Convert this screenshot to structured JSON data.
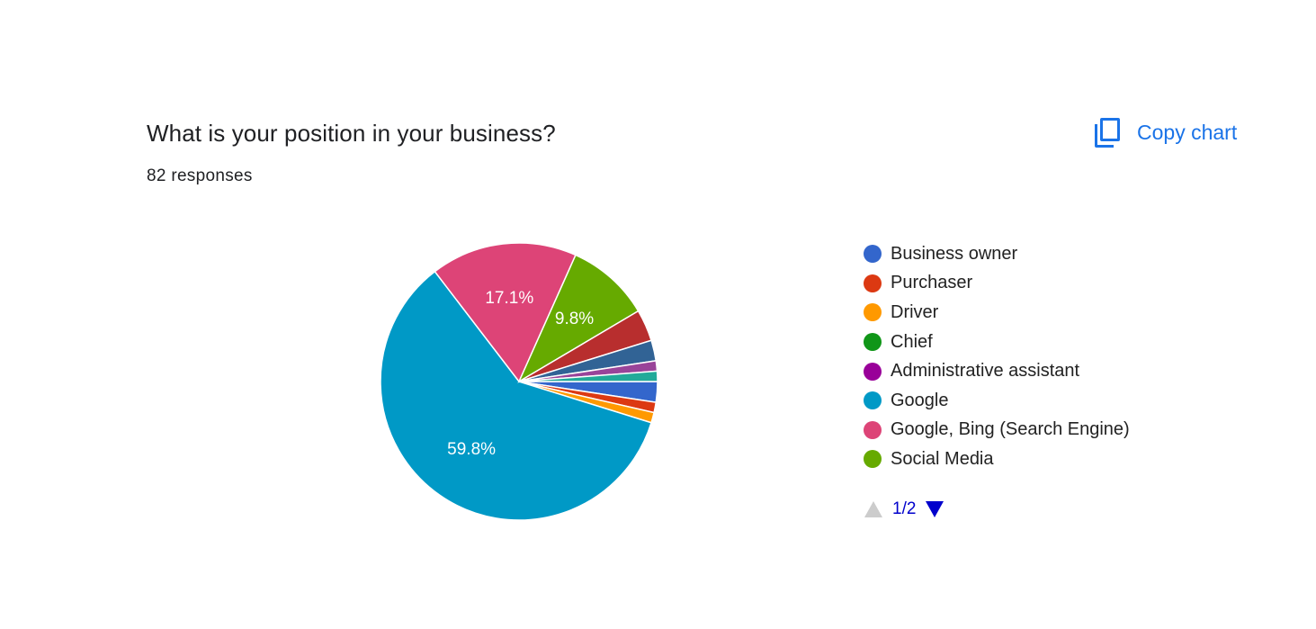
{
  "header": {
    "title": "What is your position in your business?",
    "responses": "82 responses",
    "copy_label": "Copy chart"
  },
  "colors": {
    "accent": "#1a73e8",
    "pager_active": "#0000cc",
    "pager_disabled": "#cccccc"
  },
  "icons": {
    "copy": "copy-icon",
    "prev": "triangle-up-icon",
    "next": "triangle-down-icon"
  },
  "pager": {
    "text": "1/2",
    "current": 1,
    "total": 2
  },
  "chart_data": {
    "type": "pie",
    "slices": [
      {
        "label": "Business owner",
        "value": 2.4,
        "color": "#3366cc",
        "shown_label": ""
      },
      {
        "label": "Purchaser",
        "value": 1.2,
        "color": "#dc3912",
        "shown_label": ""
      },
      {
        "label": "Driver",
        "value": 1.2,
        "color": "#ff9900",
        "shown_label": ""
      },
      {
        "label": "Google",
        "value": 59.8,
        "color": "#0099c6",
        "shown_label": "59.8%"
      },
      {
        "label": "Google, Bing (Search Engine)",
        "value": 17.1,
        "color": "#dd4477",
        "shown_label": "17.1%"
      },
      {
        "label": "Social Media",
        "value": 9.8,
        "color": "#66aa00",
        "shown_label": "9.8%"
      },
      {
        "label": "",
        "value": 3.7,
        "color": "#b82e2e",
        "shown_label": ""
      },
      {
        "label": "",
        "value": 2.4,
        "color": "#316395",
        "shown_label": ""
      },
      {
        "label": "Administrative assistant",
        "value": 1.2,
        "color": "#994499",
        "shown_label": ""
      },
      {
        "label": "",
        "value": 1.2,
        "color": "#22aa99",
        "shown_label": ""
      }
    ],
    "legend": [
      {
        "label": "Business owner",
        "color": "#3366cc"
      },
      {
        "label": "Purchaser",
        "color": "#dc3912"
      },
      {
        "label": "Driver",
        "color": "#ff9900"
      },
      {
        "label": "Chief",
        "color": "#109618"
      },
      {
        "label": "Administrative assistant",
        "color": "#990099"
      },
      {
        "label": "Google",
        "color": "#0099c6"
      },
      {
        "label": "Google, Bing (Search Engine)",
        "color": "#dd4477"
      },
      {
        "label": "Social Media",
        "color": "#66aa00"
      }
    ],
    "legend_placement": "right"
  }
}
